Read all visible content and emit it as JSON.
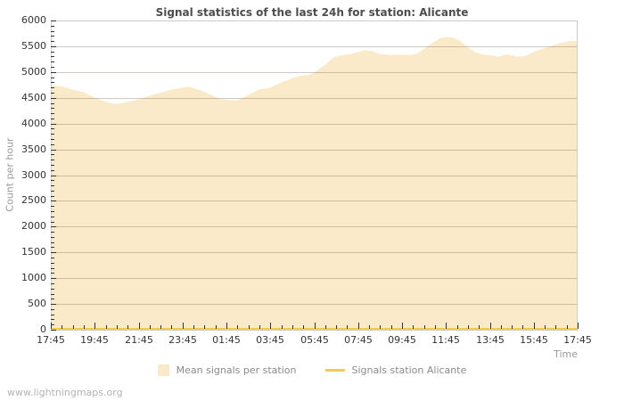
{
  "chart_data": {
    "type": "area",
    "title": "Signal statistics of the last 24h for station: Alicante",
    "xlabel": "Time",
    "ylabel": "Count per hour",
    "xlim": [
      0,
      24
    ],
    "ylim": [
      0,
      6000
    ],
    "y_major_step": 500,
    "y_minor_step": 100,
    "x_major_step": 2,
    "x_minor_step": 0.5,
    "grid": true,
    "legend_position": "bottom-center",
    "xtick_labels": [
      "17:45",
      "19:45",
      "21:45",
      "23:45",
      "01:45",
      "03:45",
      "05:45",
      "07:45",
      "09:45",
      "11:45",
      "13:45",
      "15:45",
      "17:45"
    ],
    "legend": [
      "Mean signals per station",
      "Signals station Alicante"
    ],
    "colors": {
      "area_fill": "#FBEACA",
      "station_line": "#F2CB4E",
      "grid_line": "rgba(125,115,95,0.38)",
      "plot_border": "#CCCCCC",
      "tick": "#333333"
    },
    "series": [
      {
        "name": "Mean signals per station",
        "type": "area",
        "points": [
          [
            0,
            4750
          ],
          [
            0.5,
            4720
          ],
          [
            1,
            4660
          ],
          [
            1.5,
            4610
          ],
          [
            2,
            4500
          ],
          [
            2.5,
            4420
          ],
          [
            3,
            4380
          ],
          [
            3.5,
            4420
          ],
          [
            4,
            4470
          ],
          [
            4.5,
            4540
          ],
          [
            5,
            4600
          ],
          [
            5.5,
            4660
          ],
          [
            6,
            4700
          ],
          [
            6.3,
            4715
          ],
          [
            6.8,
            4650
          ],
          [
            7.3,
            4560
          ],
          [
            7.7,
            4480
          ],
          [
            8,
            4460
          ],
          [
            8.5,
            4450
          ],
          [
            9,
            4560
          ],
          [
            9.5,
            4660
          ],
          [
            10,
            4700
          ],
          [
            10.5,
            4800
          ],
          [
            11,
            4880
          ],
          [
            11.4,
            4930
          ],
          [
            11.8,
            4950
          ],
          [
            12,
            4990
          ],
          [
            12.5,
            5140
          ],
          [
            12.9,
            5290
          ],
          [
            13.3,
            5330
          ],
          [
            13.7,
            5350
          ],
          [
            14,
            5390
          ],
          [
            14.3,
            5420
          ],
          [
            14.6,
            5410
          ],
          [
            15,
            5350
          ],
          [
            15.5,
            5330
          ],
          [
            16,
            5340
          ],
          [
            16.4,
            5330
          ],
          [
            16.7,
            5360
          ],
          [
            17,
            5450
          ],
          [
            17.4,
            5570
          ],
          [
            17.7,
            5650
          ],
          [
            18,
            5680
          ],
          [
            18.3,
            5670
          ],
          [
            18.6,
            5620
          ],
          [
            19,
            5480
          ],
          [
            19.3,
            5390
          ],
          [
            19.7,
            5340
          ],
          [
            20,
            5330
          ],
          [
            20.4,
            5300
          ],
          [
            20.8,
            5345
          ],
          [
            21.2,
            5300
          ],
          [
            21.6,
            5310
          ],
          [
            22,
            5390
          ],
          [
            22.4,
            5450
          ],
          [
            22.8,
            5510
          ],
          [
            23.2,
            5560
          ],
          [
            23.6,
            5600
          ],
          [
            24,
            5600
          ]
        ]
      },
      {
        "name": "Signals station Alicante",
        "type": "line",
        "points": [
          [
            0,
            0
          ],
          [
            24,
            0
          ]
        ]
      }
    ]
  },
  "footer": {
    "watermark": "www.lightningmaps.org"
  }
}
